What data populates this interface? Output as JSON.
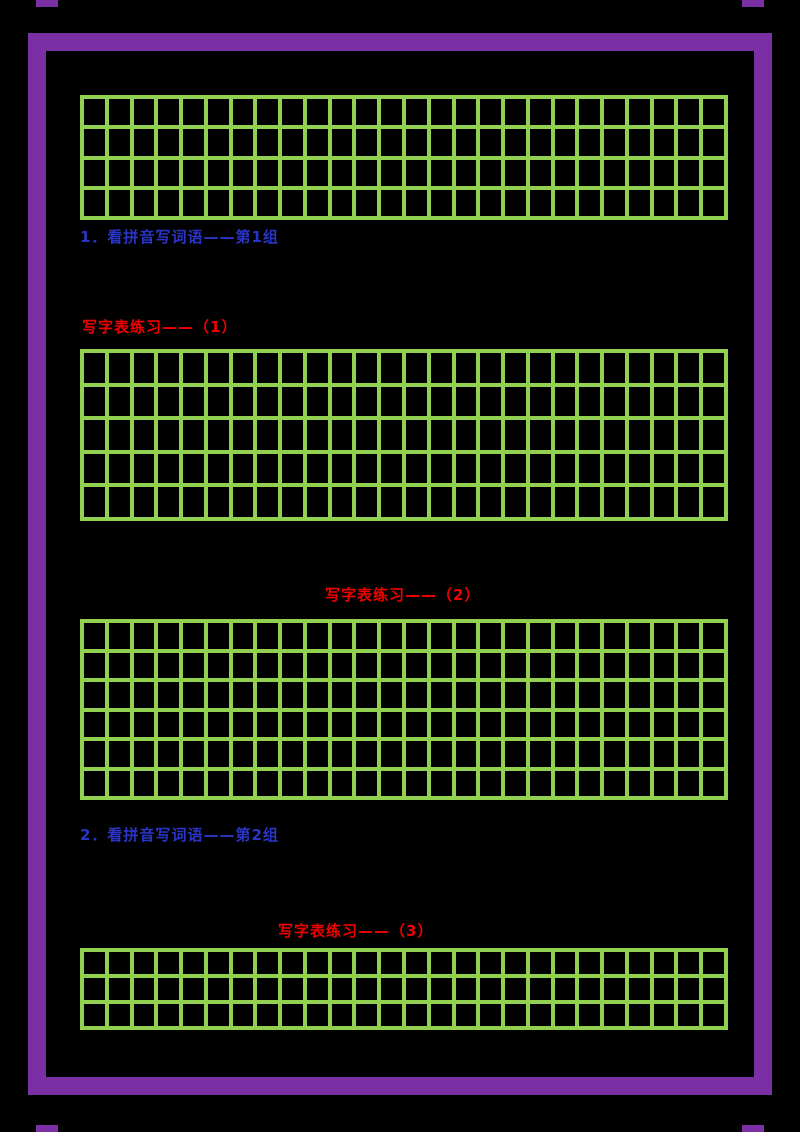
{
  "colors": {
    "frame_purple": "#7B2FA5",
    "grid_green": "#92D050",
    "caption_red": "#F20000",
    "caption_blue": "#2B35C5",
    "background": "#000000",
    "cell_black": "#000000"
  },
  "captions": {
    "item_1": "1．看拼音写词语——第1组",
    "grid_2_title": "写字表练习——（1）",
    "grid_3_title": "写字表练习——（2）",
    "item_2": "2．看拼音写词语——第2组",
    "grid_4_title": "写字表练习——（3）"
  },
  "grids": [
    {
      "id": "writing-grid-1",
      "rows": 4,
      "cols": 26
    },
    {
      "id": "writing-grid-2",
      "rows": 5,
      "cols": 26
    },
    {
      "id": "writing-grid-3",
      "rows": 6,
      "cols": 26
    },
    {
      "id": "writing-grid-4",
      "rows": 3,
      "cols": 26
    }
  ]
}
